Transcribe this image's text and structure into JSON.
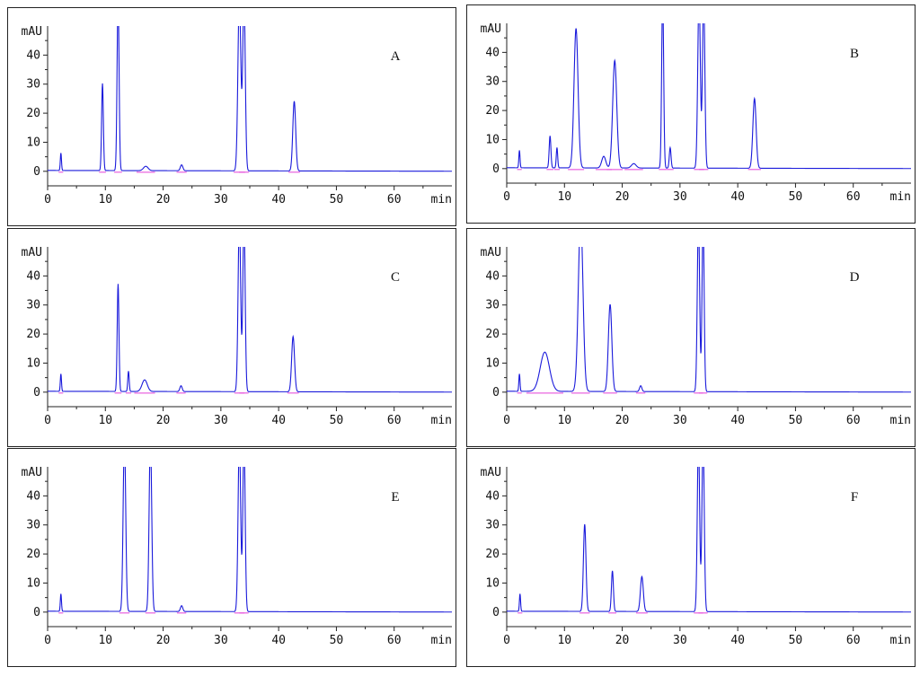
{
  "colors": {
    "signal": "#1a1adb",
    "baseline": "#e43fd8",
    "axis": "#222222"
  },
  "chart_data": [
    {
      "type": "line",
      "label": "A",
      "xunit": "min",
      "yunit": "mAU",
      "xlim": [
        0,
        70
      ],
      "ylim": [
        -5,
        50
      ],
      "xticks": [
        0,
        10,
        20,
        30,
        40,
        50,
        60
      ],
      "yticks": [
        0,
        10,
        20,
        30,
        40
      ],
      "peaks": [
        {
          "t": 2.3,
          "h": 6,
          "w": 0.1
        },
        {
          "t": 9.5,
          "h": 30,
          "w": 0.15
        },
        {
          "t": 12.2,
          "h": 60,
          "w": 0.17
        },
        {
          "t": 17.0,
          "h": 1.5,
          "w": 0.4
        },
        {
          "t": 23.2,
          "h": 2,
          "w": 0.22
        },
        {
          "t": 33.2,
          "h": 60,
          "w": 0.25
        },
        {
          "t": 34.0,
          "h": 60,
          "w": 0.22
        },
        {
          "t": 42.7,
          "h": 24,
          "w": 0.25
        }
      ]
    },
    {
      "type": "line",
      "label": "B",
      "xunit": "min",
      "yunit": "mAU",
      "xlim": [
        0,
        70
      ],
      "ylim": [
        -5,
        50
      ],
      "xticks": [
        0,
        10,
        20,
        30,
        40,
        50,
        60
      ],
      "yticks": [
        0,
        10,
        20,
        30,
        40
      ],
      "peaks": [
        {
          "t": 2.2,
          "h": 6,
          "w": 0.1
        },
        {
          "t": 7.5,
          "h": 11,
          "w": 0.15
        },
        {
          "t": 8.7,
          "h": 7,
          "w": 0.12
        },
        {
          "t": 12.0,
          "h": 48,
          "w": 0.35
        },
        {
          "t": 16.8,
          "h": 4,
          "w": 0.35
        },
        {
          "t": 18.7,
          "h": 37,
          "w": 0.35
        },
        {
          "t": 22.0,
          "h": 1.5,
          "w": 0.4
        },
        {
          "t": 27.0,
          "h": 60,
          "w": 0.17
        },
        {
          "t": 28.3,
          "h": 7,
          "w": 0.15
        },
        {
          "t": 33.3,
          "h": 60,
          "w": 0.22
        },
        {
          "t": 34.1,
          "h": 60,
          "w": 0.2
        },
        {
          "t": 42.9,
          "h": 24,
          "w": 0.28
        }
      ]
    },
    {
      "type": "line",
      "label": "C",
      "xunit": "min",
      "yunit": "mAU",
      "xlim": [
        0,
        70
      ],
      "ylim": [
        -5,
        50
      ],
      "xticks": [
        0,
        10,
        20,
        30,
        40,
        50,
        60
      ],
      "yticks": [
        0,
        10,
        20,
        30,
        40
      ],
      "peaks": [
        {
          "t": 2.3,
          "h": 6,
          "w": 0.1
        },
        {
          "t": 12.2,
          "h": 37,
          "w": 0.15
        },
        {
          "t": 14.0,
          "h": 7,
          "w": 0.12
        },
        {
          "t": 16.8,
          "h": 4,
          "w": 0.45
        },
        {
          "t": 23.1,
          "h": 2,
          "w": 0.2
        },
        {
          "t": 33.2,
          "h": 60,
          "w": 0.22
        },
        {
          "t": 34.0,
          "h": 60,
          "w": 0.2
        },
        {
          "t": 42.5,
          "h": 19,
          "w": 0.25
        }
      ]
    },
    {
      "type": "line",
      "label": "D",
      "xunit": "min",
      "yunit": "mAU",
      "xlim": [
        0,
        70
      ],
      "ylim": [
        -5,
        50
      ],
      "xticks": [
        0,
        10,
        20,
        30,
        40,
        50,
        60
      ],
      "yticks": [
        0,
        10,
        20,
        30,
        40
      ],
      "peaks": [
        {
          "t": 2.2,
          "h": 6,
          "w": 0.1
        },
        {
          "t": 6.6,
          "h": 13.5,
          "w": 0.8
        },
        {
          "t": 12.8,
          "h": 60,
          "w": 0.4
        },
        {
          "t": 17.9,
          "h": 30,
          "w": 0.3
        },
        {
          "t": 23.2,
          "h": 2,
          "w": 0.2
        },
        {
          "t": 33.2,
          "h": 60,
          "w": 0.2
        },
        {
          "t": 34.0,
          "h": 60,
          "w": 0.18
        }
      ]
    },
    {
      "type": "line",
      "label": "E",
      "xunit": "min",
      "yunit": "mAU",
      "xlim": [
        0,
        70
      ],
      "ylim": [
        -5,
        50
      ],
      "xticks": [
        0,
        10,
        20,
        30,
        40,
        50,
        60
      ],
      "yticks": [
        0,
        10,
        20,
        30,
        40
      ],
      "peaks": [
        {
          "t": 2.3,
          "h": 6,
          "w": 0.1
        },
        {
          "t": 13.3,
          "h": 60,
          "w": 0.22
        },
        {
          "t": 17.8,
          "h": 60,
          "w": 0.22
        },
        {
          "t": 23.2,
          "h": 2,
          "w": 0.2
        },
        {
          "t": 33.2,
          "h": 60,
          "w": 0.22
        },
        {
          "t": 34.0,
          "h": 60,
          "w": 0.2
        }
      ]
    },
    {
      "type": "line",
      "label": "F",
      "xunit": "min",
      "yunit": "mAU",
      "xlim": [
        0,
        70
      ],
      "ylim": [
        -5,
        50
      ],
      "xticks": [
        0,
        10,
        20,
        30,
        40,
        50,
        60
      ],
      "yticks": [
        0,
        10,
        20,
        30,
        40
      ],
      "peaks": [
        {
          "t": 2.3,
          "h": 6,
          "w": 0.1
        },
        {
          "t": 13.5,
          "h": 30,
          "w": 0.22
        },
        {
          "t": 18.3,
          "h": 14,
          "w": 0.17
        },
        {
          "t": 23.4,
          "h": 12,
          "w": 0.25
        },
        {
          "t": 33.2,
          "h": 60,
          "w": 0.2
        },
        {
          "t": 34.0,
          "h": 60,
          "w": 0.2
        }
      ]
    }
  ]
}
